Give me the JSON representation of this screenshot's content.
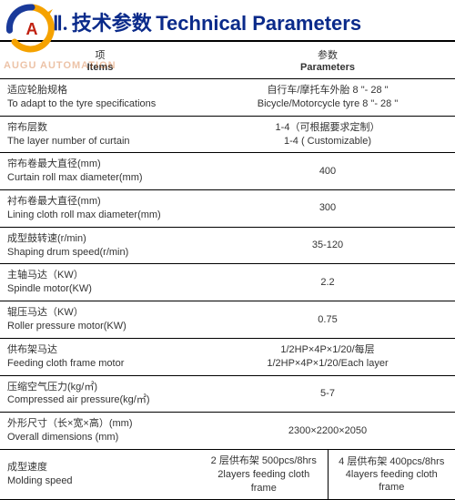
{
  "header": {
    "roman": "Ⅱ.",
    "title_cn": "技术参数",
    "title_en": "Technical Parameters"
  },
  "watermark": "AUGU AUTOMATION",
  "columns": {
    "items_cn": "项",
    "items_en": "Items",
    "params_cn": "参数",
    "params_en": "Parameters"
  },
  "rows": [
    {
      "cn": "适应轮胎规格",
      "en": "To adapt to the tyre specifications",
      "val_cn": "自行车/摩托车外胎 8 \"- 28 \"",
      "val_en": "Bicycle/Motorcycle tyre 8 \"- 28 \""
    },
    {
      "cn": "帘布层数",
      "en": "The layer number of curtain",
      "val_cn": "1-4（可根据要求定制）",
      "val_en": "1-4 ( Customizable)"
    },
    {
      "cn": "帘布卷最大直径(mm)",
      "en": "Curtain roll max diameter(mm)",
      "val": "400"
    },
    {
      "cn": "衬布卷最大直径(mm)",
      "en": "Lining cloth roll max diameter(mm)",
      "val": "300"
    },
    {
      "cn": "成型鼓转速(r/min)",
      "en": "Shaping drum speed(r/min)",
      "val": "35-120"
    },
    {
      "cn": "主轴马达（KW）",
      "en": "Spindle motor(KW)",
      "val": "2.2"
    },
    {
      "cn": "辊压马达（KW）",
      "en": "Roller pressure motor(KW)",
      "val": "0.75"
    },
    {
      "cn": "供布架马达",
      "en": "Feeding cloth frame motor",
      "val_cn": "1/2HP×4P×1/20/每层",
      "val_en": "1/2HP×4P×1/20/Each layer"
    },
    {
      "cn": "压缩空气压力(kg/㎡)",
      "en": "Compressed air pressure(kg/㎡)",
      "val": "5-7"
    },
    {
      "cn": "外形尺寸（长×宽×高）(mm)",
      "en": "Overall dimensions (mm)",
      "val": "2300×2200×2050"
    }
  ],
  "last_row": {
    "cn": "成型速度",
    "en": "Molding speed",
    "left_cn": "2 层供布架 500pcs/8hrs",
    "left_en": "2layers feeding cloth frame",
    "right_cn": "4 层供布架 400pcs/8hrs",
    "right_en": "4layers feeding cloth frame"
  }
}
